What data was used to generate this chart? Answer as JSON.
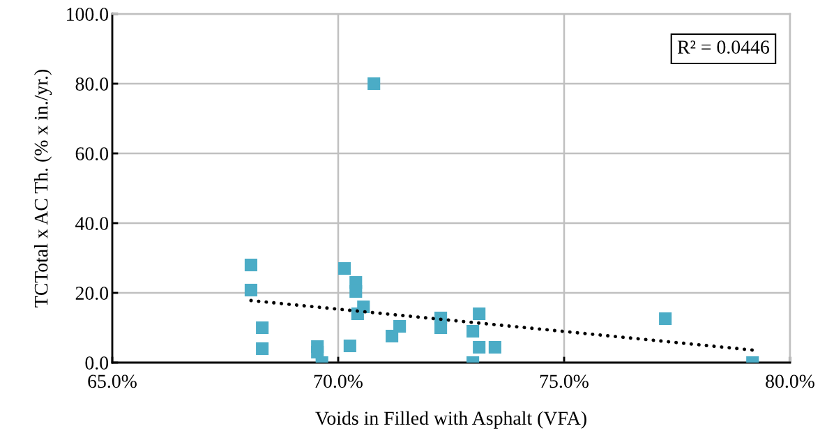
{
  "chart_data": {
    "type": "scatter",
    "xlabel": "Voids in Filled with Asphalt (VFA)",
    "ylabel": "TCTotal x AC Th. (% x in./yr.)",
    "xlim": [
      65,
      80
    ],
    "xticks": [
      {
        "value": 65,
        "label": "65.0%"
      },
      {
        "value": 70,
        "label": "70.0%"
      },
      {
        "value": 75,
        "label": "75.0%"
      },
      {
        "value": 80,
        "label": "80.0%"
      }
    ],
    "ylim": [
      0,
      100
    ],
    "yticks": [
      {
        "value": 0,
        "label": "0.0"
      },
      {
        "value": 20,
        "label": "20.0"
      },
      {
        "value": 40,
        "label": "40.0"
      },
      {
        "value": 60,
        "label": "60.0"
      },
      {
        "value": 80,
        "label": "80.0"
      },
      {
        "value": 100,
        "label": "100.0"
      }
    ],
    "grid": true,
    "legend": false,
    "annotations": [
      "R² = 0.0446"
    ],
    "series": [
      {
        "color": "#4bacc6",
        "marker": "square",
        "x": [
          68.07,
          68.07,
          68.32,
          68.32,
          69.54,
          69.54,
          69.64,
          70.14,
          70.39,
          70.39,
          70.56,
          70.43,
          70.26,
          70.79,
          71.19,
          71.36,
          72.27,
          72.27,
          73.12,
          72.98,
          73.12,
          73.47,
          72.98,
          77.24,
          79.17
        ],
        "values": [
          28.0,
          20.8,
          10.0,
          4.0,
          4.6,
          3.0,
          0.0,
          27.0,
          23.0,
          20.4,
          16.0,
          14.0,
          4.8,
          80.0,
          7.6,
          10.4,
          12.8,
          10.0,
          14.0,
          9.0,
          4.4,
          4.4,
          0.0,
          12.6,
          0.0
        ]
      },
      {
        "type": "line",
        "color": "#000000",
        "line_style": "dotted",
        "marker": "none",
        "x": [
          68.07,
          79.17
        ],
        "values": [
          17.8,
          3.6
        ]
      }
    ]
  }
}
